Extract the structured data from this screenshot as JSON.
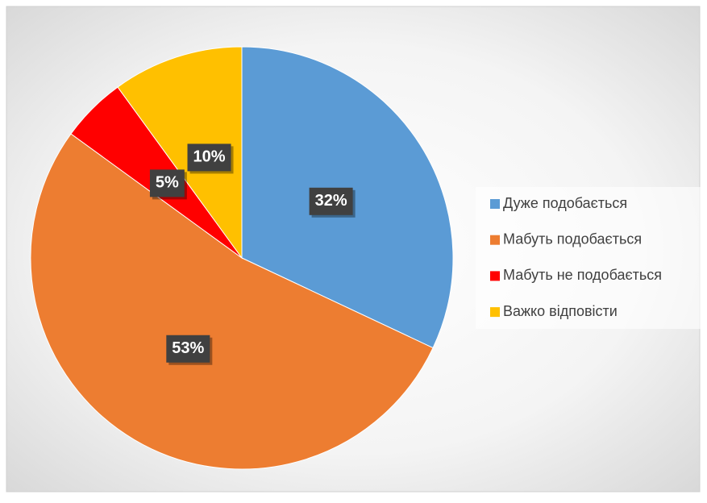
{
  "chart_data": {
    "type": "pie",
    "categories": [
      "Дуже подобається",
      "Мабуть подобається",
      "Мабуть не подобається",
      "Важко відповісти"
    ],
    "values": [
      32,
      53,
      5,
      10
    ],
    "value_labels": [
      "32%",
      "53%",
      "5%",
      "10%"
    ],
    "colors": [
      "#5b9bd5",
      "#ed7d31",
      "#ff0000",
      "#ffc000"
    ],
    "legend": "right"
  }
}
